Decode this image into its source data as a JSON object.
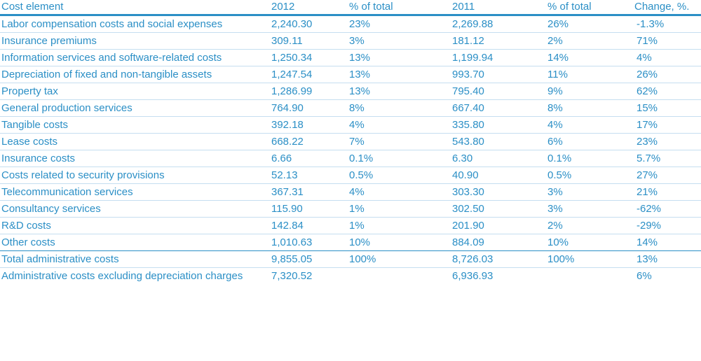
{
  "table": {
    "headers": [
      "Cost element",
      "2012",
      "% of total",
      "2011",
      "% of total",
      "Change, %."
    ],
    "rows": [
      [
        "Labor compensation costs and social expenses",
        "2,240.30",
        "23%",
        "2,269.88",
        "26%",
        "-1.3%"
      ],
      [
        "Insurance premiums",
        "309.11",
        "3%",
        "181.12",
        "2%",
        "71%"
      ],
      [
        "Information services and software-related costs",
        "1,250.34",
        "13%",
        "1,199.94",
        "14%",
        "4%"
      ],
      [
        "Depreciation of fixed and non-tangible assets",
        "1,247.54",
        "13%",
        "993.70",
        "11%",
        "26%"
      ],
      [
        "Property tax",
        "1,286.99",
        "13%",
        "795.40",
        "9%",
        "62%"
      ],
      [
        "General production services",
        "764.90",
        "8%",
        "667.40",
        "8%",
        "15%"
      ],
      [
        "Tangible costs",
        "392.18",
        "4%",
        "335.80",
        "4%",
        "17%"
      ],
      [
        "Lease costs",
        "668.22",
        "7%",
        "543.80",
        "6%",
        "23%"
      ],
      [
        "Insurance costs",
        "6.66",
        "0.1%",
        "6.30",
        "0.1%",
        "5.7%"
      ],
      [
        "Costs related to security provisions",
        "52.13",
        "0.5%",
        "40.90",
        "0.5%",
        "27%"
      ],
      [
        "Telecommunication services",
        "367.31",
        "4%",
        "303.30",
        "3%",
        "21%"
      ],
      [
        "Consultancy services",
        "115.90",
        "1%",
        "302.50",
        "3%",
        "-62%"
      ],
      [
        "R&D costs",
        "142.84",
        "1%",
        "201.90",
        "2%",
        "-29%"
      ],
      [
        "Other costs",
        "1,010.63",
        "10%",
        "884.09",
        "10%",
        "14%"
      ]
    ],
    "total_row": [
      "Total administrative costs",
      "9,855.05",
      "100%",
      "8,726.03",
      "100%",
      "13%"
    ],
    "excl_row": [
      "Administrative costs excluding depreciation charges",
      "7,320.52",
      "",
      "6,936.93",
      "",
      "6%"
    ]
  },
  "colors": {
    "text": "#2b8fc6",
    "header_rule": "#2b8fc6",
    "row_divider": "#c5def0"
  }
}
